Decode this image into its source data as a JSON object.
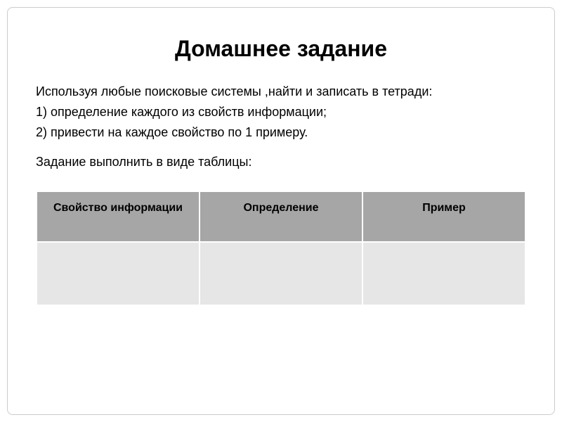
{
  "title": "Домашнее задание",
  "body": {
    "line1": "Используя любые поисковые системы ,найти и записать в тетради:",
    "line2": "1) определение каждого из свойств информации;",
    "line3": "2) привести на каждое свойство по 1 примеру."
  },
  "instruction": "Задание выполнить в виде таблицы:",
  "table": {
    "type": "table",
    "columns": [
      {
        "label": "Свойство информации",
        "width_pct": 33.3
      },
      {
        "label": "Определение",
        "width_pct": 33.3
      },
      {
        "label": "Пример",
        "width_pct": 33.3
      }
    ],
    "rows": [
      [
        "",
        "",
        ""
      ]
    ],
    "header_bg": "#a6a6a6",
    "cell_bg": "#e6e6e6",
    "border_color": "#ffffff",
    "header_font_size": 16,
    "header_font_weight": "bold",
    "header_row_height": 72,
    "data_row_height": 90
  },
  "colors": {
    "background": "#ffffff",
    "text": "#000000",
    "slide_border": "#cccccc"
  },
  "typography": {
    "title_fontsize": 32,
    "title_weight": "bold",
    "body_fontsize": 18,
    "font_family": "Arial"
  }
}
